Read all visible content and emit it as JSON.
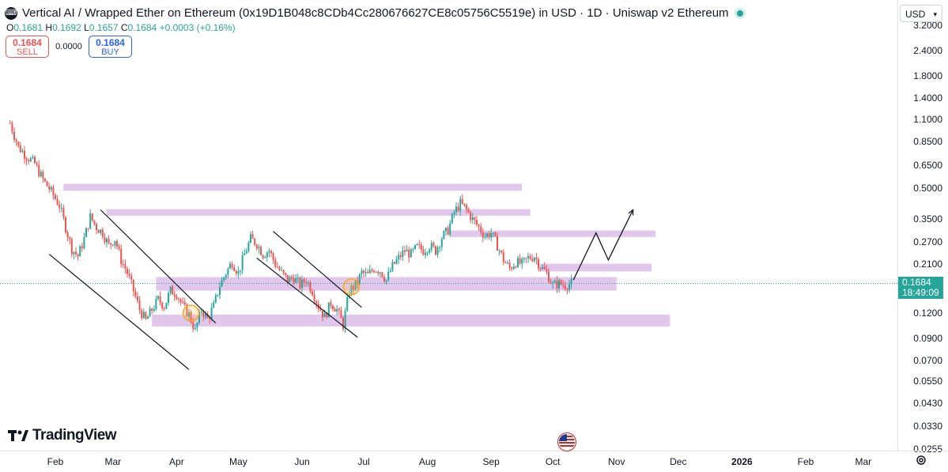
{
  "header": {
    "title": "Vertical AI / Wrapped Ether on Ethereum (0x19D1B048c8CDb4Cc280676627CE8c05756C5519e) in USD · 1D · Uniswap v2 Ethereum",
    "ohlc": {
      "o_label": "O",
      "o": "0.1681",
      "h_label": "H",
      "h": "0.1692",
      "l_label": "L",
      "l": "0.1657",
      "c_label": "C",
      "c": "0.1684",
      "change": "+0.0003 (+0.16%)"
    }
  },
  "trade": {
    "sell_price": "0.1684",
    "sell_label": "SELL",
    "spread": "0.0000",
    "buy_price": "0.1684",
    "buy_label": "BUY"
  },
  "currency": "USD",
  "last_price": {
    "price": "0.1684",
    "countdown": "18:49:09"
  },
  "brand": "TradingView",
  "colors": {
    "up": "#26a69a",
    "down": "#ef5350",
    "zone": "#d8b4e6",
    "line": "#131722"
  },
  "chart_data": {
    "type": "candlestick",
    "y_scale": "log",
    "y_ticks": [
      "3.2000",
      "2.4000",
      "1.8000",
      "1.4000",
      "1.1000",
      "0.8500",
      "0.6500",
      "0.5000",
      "0.3500",
      "0.2700",
      "0.2100",
      "0.1200",
      "0.0900",
      "0.0700",
      "0.0550",
      "0.0430",
      "0.0330",
      "0.0255"
    ],
    "x_ticks": [
      "Feb",
      "Mar",
      "Apr",
      "May",
      "Jun",
      "Jul",
      "Aug",
      "Sep",
      "Oct",
      "Nov",
      "Dec",
      "2026",
      "Feb",
      "Mar"
    ],
    "close_path": [
      [
        "2025-01-10",
        1.05
      ],
      [
        "2025-01-14",
        0.8
      ],
      [
        "2025-01-18",
        0.72
      ],
      [
        "2025-01-22",
        0.66
      ],
      [
        "2025-01-26",
        0.55
      ],
      [
        "2025-01-30",
        0.48
      ],
      [
        "2025-02-03",
        0.41
      ],
      [
        "2025-02-06",
        0.32
      ],
      [
        "2025-02-09",
        0.25
      ],
      [
        "2025-02-12",
        0.23
      ],
      [
        "2025-02-15",
        0.28
      ],
      [
        "2025-02-18",
        0.36
      ],
      [
        "2025-02-21",
        0.32
      ],
      [
        "2025-02-24",
        0.3
      ],
      [
        "2025-02-27",
        0.26
      ],
      [
        "2025-03-02",
        0.28
      ],
      [
        "2025-03-05",
        0.22
      ],
      [
        "2025-03-08",
        0.19
      ],
      [
        "2025-03-11",
        0.155
      ],
      [
        "2025-03-14",
        0.125
      ],
      [
        "2025-03-17",
        0.11
      ],
      [
        "2025-03-20",
        0.125
      ],
      [
        "2025-03-23",
        0.14
      ],
      [
        "2025-03-26",
        0.13
      ],
      [
        "2025-03-29",
        0.155
      ],
      [
        "2025-04-01",
        0.15
      ],
      [
        "2025-04-04",
        0.13
      ],
      [
        "2025-04-07",
        0.118
      ],
      [
        "2025-04-10",
        0.098
      ],
      [
        "2025-04-13",
        0.125
      ],
      [
        "2025-04-16",
        0.112
      ],
      [
        "2025-04-19",
        0.13
      ],
      [
        "2025-04-22",
        0.165
      ],
      [
        "2025-04-25",
        0.19
      ],
      [
        "2025-04-28",
        0.215
      ],
      [
        "2025-05-01",
        0.19
      ],
      [
        "2025-05-04",
        0.235
      ],
      [
        "2025-05-07",
        0.28
      ],
      [
        "2025-05-10",
        0.265
      ],
      [
        "2025-05-13",
        0.235
      ],
      [
        "2025-05-16",
        0.245
      ],
      [
        "2025-05-19",
        0.21
      ],
      [
        "2025-05-22",
        0.19
      ],
      [
        "2025-05-25",
        0.175
      ],
      [
        "2025-05-28",
        0.18
      ],
      [
        "2025-05-31",
        0.165
      ],
      [
        "2025-06-03",
        0.175
      ],
      [
        "2025-06-06",
        0.155
      ],
      [
        "2025-06-09",
        0.13
      ],
      [
        "2025-06-12",
        0.115
      ],
      [
        "2025-06-15",
        0.135
      ],
      [
        "2025-06-18",
        0.125
      ],
      [
        "2025-06-21",
        0.105
      ],
      [
        "2025-06-24",
        0.155
      ],
      [
        "2025-06-27",
        0.165
      ],
      [
        "2025-06-30",
        0.19
      ],
      [
        "2025-07-03",
        0.185
      ],
      [
        "2025-07-06",
        0.2
      ],
      [
        "2025-07-09",
        0.195
      ],
      [
        "2025-07-12",
        0.175
      ],
      [
        "2025-07-15",
        0.205
      ],
      [
        "2025-07-18",
        0.225
      ],
      [
        "2025-07-21",
        0.245
      ],
      [
        "2025-07-24",
        0.235
      ],
      [
        "2025-07-27",
        0.255
      ],
      [
        "2025-07-30",
        0.245
      ],
      [
        "2025-08-02",
        0.26
      ],
      [
        "2025-08-05",
        0.245
      ],
      [
        "2025-08-08",
        0.285
      ],
      [
        "2025-08-11",
        0.31
      ],
      [
        "2025-08-14",
        0.38
      ],
      [
        "2025-08-17",
        0.42
      ],
      [
        "2025-08-20",
        0.39
      ],
      [
        "2025-08-23",
        0.35
      ],
      [
        "2025-08-26",
        0.32
      ],
      [
        "2025-08-29",
        0.29
      ],
      [
        "2025-09-01",
        0.3
      ],
      [
        "2025-09-04",
        0.26
      ],
      [
        "2025-09-07",
        0.22
      ],
      [
        "2025-09-10",
        0.2
      ],
      [
        "2025-09-13",
        0.215
      ],
      [
        "2025-09-16",
        0.21
      ],
      [
        "2025-09-19",
        0.225
      ],
      [
        "2025-09-22",
        0.23
      ],
      [
        "2025-09-25",
        0.205
      ],
      [
        "2025-09-28",
        0.19
      ],
      [
        "2025-10-01",
        0.165
      ],
      [
        "2025-10-04",
        0.168
      ],
      [
        "2025-10-07",
        0.165
      ],
      [
        "2025-10-10",
        0.1684
      ]
    ],
    "zones": [
      {
        "x1": "2025-02-05",
        "x2": "2025-09-16",
        "y1": 0.485,
        "y2": 0.525
      },
      {
        "x1": "2025-02-26",
        "x2": "2025-09-20",
        "y1": 0.365,
        "y2": 0.393
      },
      {
        "x1": "2025-08-12",
        "x2": "2025-11-20",
        "y1": 0.286,
        "y2": 0.308
      },
      {
        "x1": "2025-09-24",
        "x2": "2025-11-18",
        "y1": 0.193,
        "y2": 0.211
      },
      {
        "x1": "2025-03-22",
        "x2": "2025-11-01",
        "y1": 0.155,
        "y2": 0.181
      },
      {
        "x1": "2025-03-20",
        "x2": "2025-11-27",
        "y1": 0.103,
        "y2": 0.118
      }
    ],
    "trend_lines": [
      {
        "x1": "2025-01-29",
        "y1": 0.235,
        "x2": "2025-04-07",
        "y2": 0.063
      },
      {
        "x1": "2025-02-23",
        "y1": 0.39,
        "x2": "2025-04-20",
        "y2": 0.107
      },
      {
        "x1": "2025-05-10",
        "y1": 0.225,
        "x2": "2025-06-28",
        "y2": 0.091
      },
      {
        "x1": "2025-05-18",
        "y1": 0.305,
        "x2": "2025-06-30",
        "y2": 0.128
      }
    ],
    "circles": [
      {
        "x": "2025-04-08",
        "y": 0.12
      },
      {
        "x": "2025-06-25",
        "y": 0.162
      }
    ],
    "projection": [
      [
        "2025-10-11",
        0.175
      ],
      [
        "2025-10-22",
        0.3
      ],
      [
        "2025-10-28",
        0.22
      ],
      [
        "2025-11-09",
        0.39
      ]
    ]
  }
}
